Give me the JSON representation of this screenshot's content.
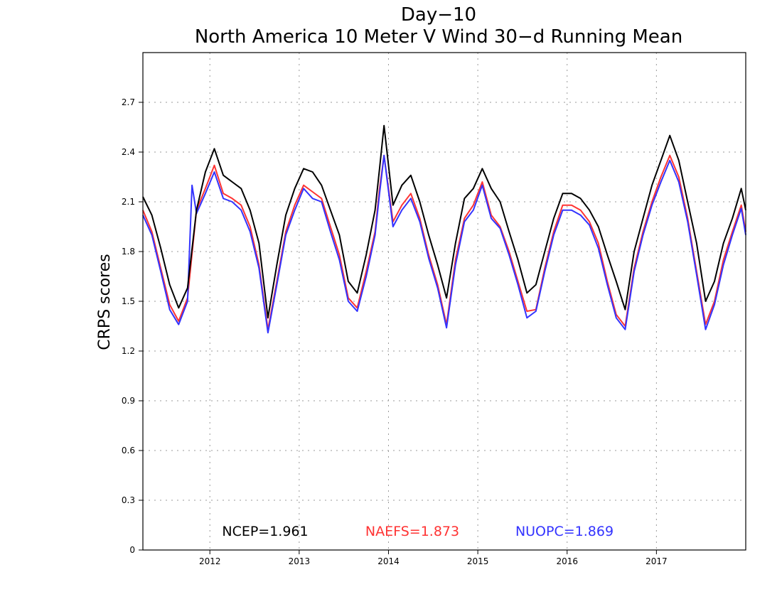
{
  "chart_data": {
    "type": "line",
    "title": "Day−10",
    "subtitle": "North America 10 Meter V Wind 30−d Running Mean",
    "ylabel": "CRPS scores",
    "xlabel": "",
    "ylim": [
      0,
      3.0
    ],
    "xlim": [
      2011.25,
      2018.0
    ],
    "yticks": [
      0,
      0.3,
      0.6,
      0.9,
      1.2,
      1.5,
      1.8,
      2.1,
      2.4,
      2.7
    ],
    "ytick_labels": [
      "0",
      "0.3",
      "0.6",
      "0.9",
      "1.2",
      "1.5",
      "1.8",
      "2.1",
      "2.4",
      "2.7"
    ],
    "xticks": [
      2012,
      2013,
      2014,
      2015,
      2016,
      2017
    ],
    "xtick_labels": [
      "2012",
      "2013",
      "2014",
      "2015",
      "2016",
      "2017"
    ],
    "grid": true,
    "legend_placement": "bottom",
    "stats": [
      {
        "label": "NCEP=1.961",
        "color": "#000000"
      },
      {
        "label": "NAEFS=1.873",
        "color": "#ff3333"
      },
      {
        "label": "NUOPC=1.869",
        "color": "#3333ff"
      }
    ],
    "series": [
      {
        "name": "NCEP",
        "color": "#000000",
        "x": [
          2011.25,
          2011.35,
          2011.45,
          2011.55,
          2011.65,
          2011.75,
          2011.85,
          2011.95,
          2012.05,
          2012.15,
          2012.25,
          2012.35,
          2012.45,
          2012.55,
          2012.65,
          2012.75,
          2012.85,
          2012.95,
          2013.05,
          2013.15,
          2013.25,
          2013.35,
          2013.45,
          2013.55,
          2013.65,
          2013.75,
          2013.85,
          2013.9,
          2013.95,
          2014.05,
          2014.15,
          2014.25,
          2014.35,
          2014.45,
          2014.55,
          2014.65,
          2014.75,
          2014.85,
          2014.95,
          2015.05,
          2015.15,
          2015.25,
          2015.35,
          2015.45,
          2015.55,
          2015.65,
          2015.75,
          2015.85,
          2015.95,
          2016.05,
          2016.15,
          2016.25,
          2016.35,
          2016.45,
          2016.55,
          2016.65,
          2016.75,
          2016.85,
          2016.95,
          2017.05,
          2017.15,
          2017.25,
          2017.35,
          2017.45,
          2017.55,
          2017.65,
          2017.75,
          2017.85,
          2017.95,
          2018.0
        ],
        "values": [
          2.13,
          2.02,
          1.82,
          1.6,
          1.46,
          1.58,
          2.05,
          2.28,
          2.42,
          2.26,
          2.22,
          2.18,
          2.05,
          1.85,
          1.4,
          1.72,
          2.02,
          2.18,
          2.3,
          2.28,
          2.2,
          2.05,
          1.9,
          1.62,
          1.55,
          1.78,
          2.05,
          2.3,
          2.56,
          2.08,
          2.2,
          2.26,
          2.1,
          1.9,
          1.72,
          1.52,
          1.85,
          2.12,
          2.18,
          2.3,
          2.18,
          2.1,
          1.92,
          1.75,
          1.55,
          1.6,
          1.8,
          2.0,
          2.15,
          2.15,
          2.12,
          2.05,
          1.95,
          1.78,
          1.62,
          1.45,
          1.8,
          2.0,
          2.2,
          2.35,
          2.5,
          2.35,
          2.1,
          1.85,
          1.5,
          1.62,
          1.85,
          2.0,
          2.18,
          2.05
        ]
      },
      {
        "name": "NAEFS",
        "color": "#ff3333",
        "x": [
          2011.25,
          2011.35,
          2011.45,
          2011.55,
          2011.65,
          2011.75,
          2011.85,
          2011.95,
          2012.05,
          2012.15,
          2012.25,
          2012.35,
          2012.45,
          2012.55,
          2012.65,
          2012.75,
          2012.85,
          2012.95,
          2013.05,
          2013.15,
          2013.25,
          2013.35,
          2013.45,
          2013.55,
          2013.65,
          2013.75,
          2013.85,
          2013.9,
          2013.95,
          2014.05,
          2014.15,
          2014.25,
          2014.35,
          2014.45,
          2014.55,
          2014.65,
          2014.75,
          2014.85,
          2014.95,
          2015.05,
          2015.15,
          2015.25,
          2015.35,
          2015.45,
          2015.55,
          2015.65,
          2015.75,
          2015.85,
          2015.95,
          2016.05,
          2016.15,
          2016.25,
          2016.35,
          2016.45,
          2016.55,
          2016.65,
          2016.75,
          2016.85,
          2016.95,
          2017.05,
          2017.15,
          2017.25,
          2017.35,
          2017.45,
          2017.55,
          2017.65,
          2017.75,
          2017.85,
          2017.95,
          2018.0
        ],
        "values": [
          2.05,
          1.92,
          1.7,
          1.48,
          1.38,
          1.52,
          2.05,
          2.18,
          2.32,
          2.15,
          2.12,
          2.08,
          1.95,
          1.72,
          1.33,
          1.62,
          1.92,
          2.08,
          2.2,
          2.16,
          2.12,
          1.95,
          1.78,
          1.52,
          1.46,
          1.68,
          1.92,
          2.18,
          2.38,
          1.98,
          2.08,
          2.15,
          2.0,
          1.78,
          1.6,
          1.36,
          1.75,
          2.0,
          2.08,
          2.22,
          2.02,
          1.95,
          1.8,
          1.62,
          1.44,
          1.45,
          1.7,
          1.92,
          2.08,
          2.08,
          2.05,
          1.98,
          1.85,
          1.62,
          1.42,
          1.35,
          1.7,
          1.92,
          2.1,
          2.25,
          2.38,
          2.25,
          2.0,
          1.68,
          1.36,
          1.5,
          1.75,
          1.92,
          2.08,
          1.92
        ]
      },
      {
        "name": "NUOPC",
        "color": "#3333ff",
        "x": [
          2011.25,
          2011.35,
          2011.45,
          2011.55,
          2011.65,
          2011.75,
          2011.8,
          2011.85,
          2011.95,
          2012.05,
          2012.15,
          2012.25,
          2012.35,
          2012.45,
          2012.55,
          2012.65,
          2012.75,
          2012.85,
          2012.95,
          2013.05,
          2013.15,
          2013.25,
          2013.35,
          2013.45,
          2013.55,
          2013.65,
          2013.75,
          2013.85,
          2013.9,
          2013.95,
          2014.05,
          2014.15,
          2014.25,
          2014.35,
          2014.45,
          2014.55,
          2014.65,
          2014.75,
          2014.85,
          2014.95,
          2015.05,
          2015.15,
          2015.25,
          2015.35,
          2015.45,
          2015.55,
          2015.65,
          2015.75,
          2015.85,
          2015.95,
          2016.05,
          2016.15,
          2016.25,
          2016.35,
          2016.45,
          2016.55,
          2016.65,
          2016.75,
          2016.85,
          2016.95,
          2017.05,
          2017.15,
          2017.25,
          2017.35,
          2017.45,
          2017.55,
          2017.65,
          2017.75,
          2017.85,
          2017.95,
          2018.0
        ],
        "values": [
          2.02,
          1.9,
          1.68,
          1.45,
          1.36,
          1.5,
          2.2,
          2.03,
          2.15,
          2.28,
          2.12,
          2.1,
          2.05,
          1.92,
          1.7,
          1.31,
          1.6,
          1.9,
          2.05,
          2.18,
          2.12,
          2.1,
          1.92,
          1.75,
          1.5,
          1.44,
          1.65,
          1.9,
          2.15,
          2.38,
          1.95,
          2.05,
          2.12,
          1.98,
          1.76,
          1.58,
          1.34,
          1.72,
          1.98,
          2.05,
          2.2,
          2.0,
          1.94,
          1.78,
          1.6,
          1.4,
          1.44,
          1.68,
          1.9,
          2.05,
          2.05,
          2.02,
          1.96,
          1.82,
          1.6,
          1.4,
          1.33,
          1.68,
          1.9,
          2.08,
          2.22,
          2.35,
          2.22,
          1.98,
          1.66,
          1.33,
          1.48,
          1.72,
          1.9,
          2.06,
          1.9
        ]
      }
    ]
  }
}
